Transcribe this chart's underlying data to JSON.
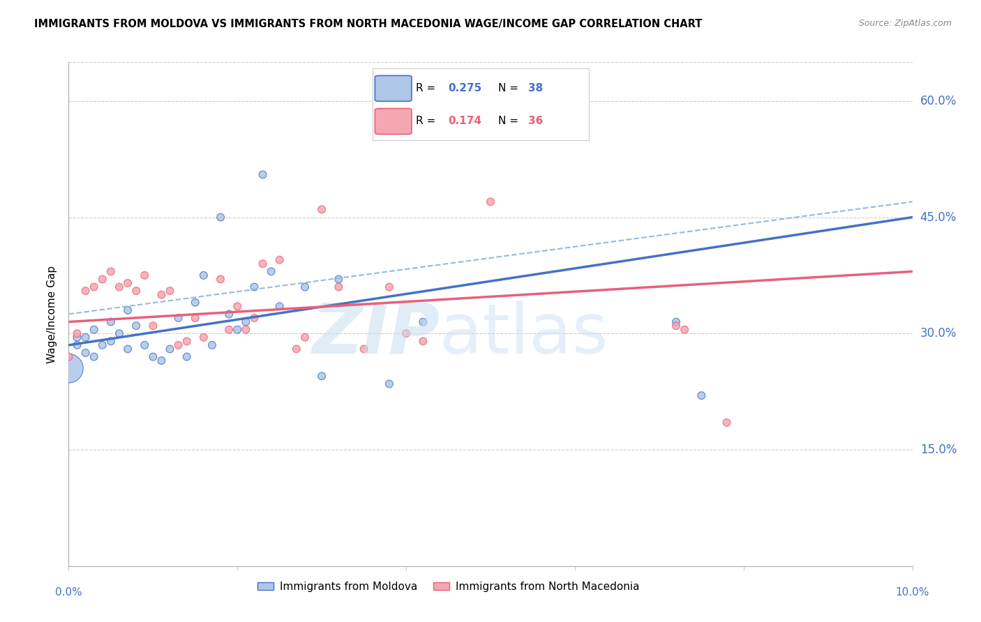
{
  "title": "IMMIGRANTS FROM MOLDOVA VS IMMIGRANTS FROM NORTH MACEDONIA WAGE/INCOME GAP CORRELATION CHART",
  "source": "Source: ZipAtlas.com",
  "ylabel": "Wage/Income Gap",
  "ytick_labels": [
    "15.0%",
    "30.0%",
    "45.0%",
    "60.0%"
  ],
  "ytick_values": [
    0.15,
    0.3,
    0.45,
    0.6
  ],
  "xlim": [
    0.0,
    0.1
  ],
  "ylim": [
    0.0,
    0.65
  ],
  "R_moldova": 0.275,
  "N_moldova": 38,
  "R_n_maced": 0.174,
  "N_n_maced": 36,
  "color_moldova": "#aec6e8",
  "color_n_maced": "#f4a7b0",
  "color_moldova_line": "#4472c4",
  "color_n_maced_line": "#e8607a",
  "color_dashed": "#9ab8d8",
  "color_axis_text": "#4472c4",
  "moldova_x": [
    0.0,
    0.001,
    0.001,
    0.002,
    0.002,
    0.003,
    0.003,
    0.004,
    0.005,
    0.005,
    0.006,
    0.007,
    0.007,
    0.008,
    0.009,
    0.01,
    0.011,
    0.012,
    0.013,
    0.014,
    0.015,
    0.016,
    0.017,
    0.018,
    0.019,
    0.02,
    0.021,
    0.022,
    0.023,
    0.024,
    0.025,
    0.028,
    0.03,
    0.032,
    0.038,
    0.042,
    0.072,
    0.075
  ],
  "moldova_y": [
    0.255,
    0.285,
    0.295,
    0.275,
    0.295,
    0.27,
    0.305,
    0.285,
    0.29,
    0.315,
    0.3,
    0.28,
    0.33,
    0.31,
    0.285,
    0.27,
    0.265,
    0.28,
    0.32,
    0.27,
    0.34,
    0.375,
    0.285,
    0.45,
    0.325,
    0.305,
    0.315,
    0.36,
    0.505,
    0.38,
    0.335,
    0.36,
    0.245,
    0.37,
    0.235,
    0.315,
    0.315,
    0.22
  ],
  "moldova_sizes": [
    900,
    60,
    60,
    60,
    60,
    60,
    60,
    60,
    60,
    60,
    60,
    60,
    60,
    60,
    60,
    60,
    60,
    60,
    60,
    60,
    60,
    60,
    60,
    60,
    60,
    60,
    60,
    60,
    60,
    60,
    60,
    60,
    60,
    60,
    60,
    60,
    60,
    60
  ],
  "n_maced_x": [
    0.0,
    0.001,
    0.002,
    0.003,
    0.004,
    0.005,
    0.006,
    0.007,
    0.008,
    0.009,
    0.01,
    0.011,
    0.012,
    0.013,
    0.014,
    0.015,
    0.016,
    0.018,
    0.019,
    0.02,
    0.021,
    0.022,
    0.023,
    0.025,
    0.027,
    0.028,
    0.03,
    0.032,
    0.035,
    0.038,
    0.04,
    0.042,
    0.05,
    0.072,
    0.073,
    0.078
  ],
  "n_maced_y": [
    0.27,
    0.3,
    0.355,
    0.36,
    0.37,
    0.38,
    0.36,
    0.365,
    0.355,
    0.375,
    0.31,
    0.35,
    0.355,
    0.285,
    0.29,
    0.32,
    0.295,
    0.37,
    0.305,
    0.335,
    0.305,
    0.32,
    0.39,
    0.395,
    0.28,
    0.295,
    0.46,
    0.36,
    0.28,
    0.36,
    0.3,
    0.29,
    0.47,
    0.31,
    0.305,
    0.185
  ],
  "n_maced_sizes": [
    60,
    60,
    60,
    60,
    60,
    60,
    60,
    60,
    60,
    60,
    60,
    60,
    60,
    60,
    60,
    60,
    60,
    60,
    60,
    60,
    60,
    60,
    60,
    60,
    60,
    60,
    60,
    60,
    60,
    60,
    60,
    60,
    60,
    60,
    60,
    60
  ]
}
